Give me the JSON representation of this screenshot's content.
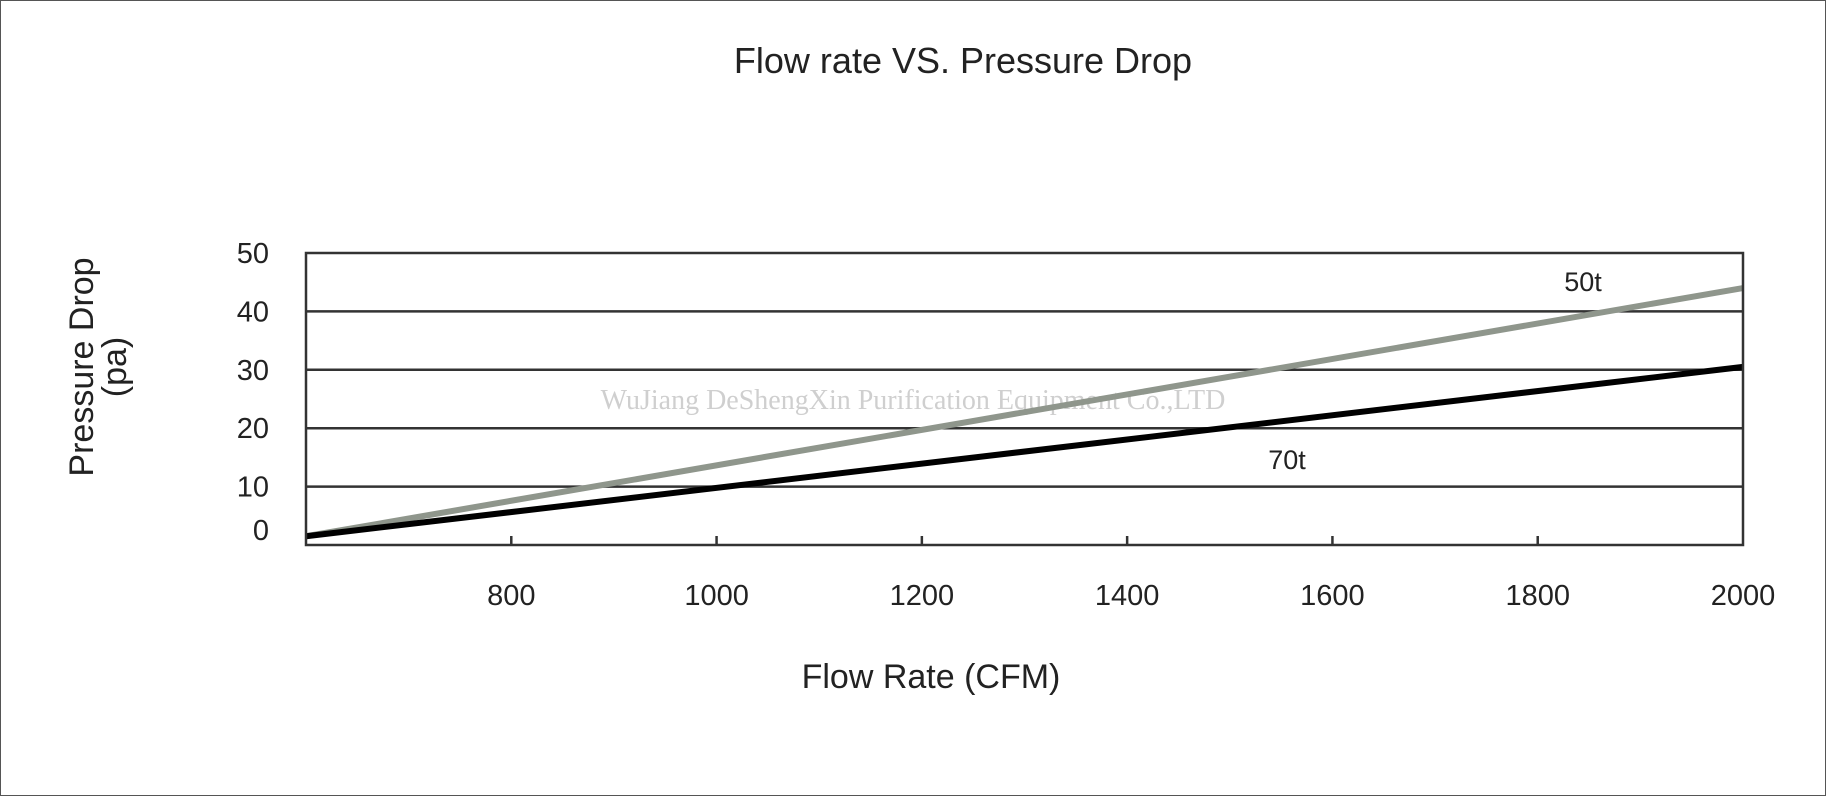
{
  "chart_data": {
    "type": "line",
    "title": "Flow rate VS. Pressure Drop",
    "xlabel": "Flow Rate (CFM)",
    "ylabel": "Pressure Drop",
    "ylabel_unit": "(pa)",
    "xlim": [
      600,
      2000
    ],
    "ylim": [
      0,
      50
    ],
    "x_ticks": [
      800,
      1000,
      1200,
      1400,
      1600,
      1800,
      2000
    ],
    "y_ticks": [
      0,
      10,
      20,
      30,
      40,
      50
    ],
    "grid": "horizontal",
    "series": [
      {
        "name": "50t",
        "color": "#8f968c",
        "x": [
          600,
          2000
        ],
        "y": [
          1.5,
          44
        ]
      },
      {
        "name": "70t",
        "color": "#000000",
        "x": [
          600,
          2000
        ],
        "y": [
          1.5,
          30.5
        ]
      }
    ],
    "watermark": "WuJiang DeShengXin Purification Equipment Co.,LTD"
  }
}
